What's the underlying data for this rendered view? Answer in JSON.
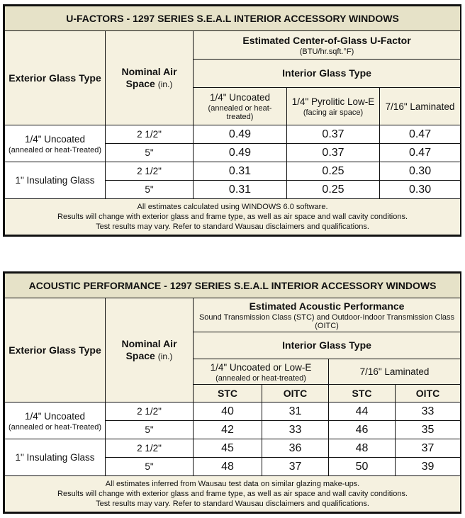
{
  "ufactor": {
    "title": "U-FACTORS - 1297 SERIES S.E.A.L INTERIOR ACCESSORY WINDOWS",
    "exterior_header": "Exterior Glass Type",
    "air_header": "Nominal Air Space",
    "air_unit": "(in.)",
    "estimated_header": "Estimated Center-of-Glass U-Factor",
    "estimated_sub": "(BTU/hr.sqft.°F)",
    "interior_header": "Interior Glass Type",
    "col1_title": "1/4\" Uncoated",
    "col1_sub": "(annealed or heat-treated)",
    "col2_title": "1/4\" Pyrolitic Low-E",
    "col2_sub": "(facing air space)",
    "col3_title": "7/16\" Laminated",
    "group1_title": "1/4\" Uncoated",
    "group1_sub": "(annealed or heat-Treated)",
    "group2_title": "1\" Insulating Glass",
    "rows": [
      {
        "air": "2 1/2\"",
        "v1": "0.49",
        "v2": "0.37",
        "v3": "0.47"
      },
      {
        "air": "5\"",
        "v1": "0.49",
        "v2": "0.37",
        "v3": "0.47"
      },
      {
        "air": "2 1/2\"",
        "v1": "0.31",
        "v2": "0.25",
        "v3": "0.30"
      },
      {
        "air": "5\"",
        "v1": "0.31",
        "v2": "0.25",
        "v3": "0.30"
      }
    ],
    "notes": [
      "All estimates calculated using WINDOWS 6.0 software.",
      "Results will change with exterior glass and frame type, as well as air space and wall cavity conditions.",
      "Test results may vary.  Refer to standard Wausau disclaimers and qualifications."
    ]
  },
  "acoustic": {
    "title": "ACOUSTIC PERFORMANCE - 1297 SERIES S.E.A.L INTERIOR ACCESSORY WINDOWS",
    "exterior_header": "Exterior Glass Type",
    "air_header": "Nominal Air Space",
    "air_unit": "(in.)",
    "estimated_header": "Estimated Acoustic Performance",
    "estimated_sub": "Sound Transmission Class (STC) and Outdoor-Indoor Transmission Class (OITC)",
    "interior_header": "Interior Glass Type",
    "col1_title": "1/4\" Uncoated or Low-E",
    "col1_sub": "(annealed or heat-treated)",
    "col2_title": "7/16\" Laminated",
    "stc": "STC",
    "oitc": "OITC",
    "group1_title": "1/4\" Uncoated",
    "group1_sub": "(annealed or heat-Treated)",
    "group2_title": "1\" Insulating Glass",
    "rows": [
      {
        "air": "2 1/2\"",
        "v1": "40",
        "v2": "31",
        "v3": "44",
        "v4": "33"
      },
      {
        "air": "5\"",
        "v1": "42",
        "v2": "33",
        "v3": "46",
        "v4": "35"
      },
      {
        "air": "2 1/2\"",
        "v1": "45",
        "v2": "36",
        "v3": "48",
        "v4": "37"
      },
      {
        "air": "5\"",
        "v1": "48",
        "v2": "37",
        "v3": "50",
        "v4": "39"
      }
    ],
    "notes": [
      "All estimates inferred from Wausau test data on similar glazing make-ups.",
      "Results will change with exterior glass and frame type, as well as air space and wall cavity conditions.",
      "Test results may vary.  Refer to standard Wausau disclaimers and qualifications."
    ]
  }
}
